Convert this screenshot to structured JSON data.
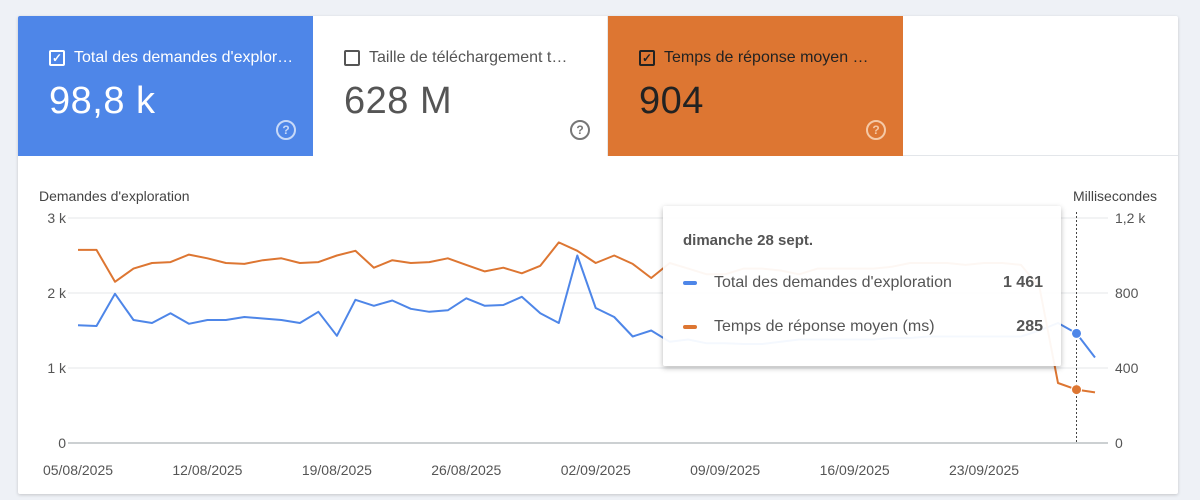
{
  "metrics": [
    {
      "label": "Total des demandes d'explor…",
      "value": "98,8 k",
      "checked": true,
      "color": "#4e86e8"
    },
    {
      "label": "Taille de téléchargement t…",
      "value": "628 M",
      "checked": false,
      "color": "#ffffff"
    },
    {
      "label": "Temps de réponse moyen …",
      "value": "904",
      "checked": true,
      "color": "#dd7632"
    }
  ],
  "help_glyph": "?",
  "check_glyph": "✓",
  "chart_data": {
    "type": "line",
    "ylabel_left": "Demandes d'exploration",
    "ylabel_right": "Millisecondes",
    "y_left_ticks": [
      "0",
      "1 k",
      "2 k",
      "3 k"
    ],
    "y_left_range": [
      0,
      3000
    ],
    "y_right_ticks": [
      "0",
      "400",
      "800",
      "1,2 k"
    ],
    "y_right_range": [
      0,
      1200
    ],
    "x_tick_labels": [
      "05/08/2025",
      "12/08/2025",
      "19/08/2025",
      "26/08/2025",
      "02/09/2025",
      "09/09/2025",
      "16/09/2025",
      "23/09/2025"
    ],
    "x": [
      "05/08/2025",
      "06/08/2025",
      "07/08/2025",
      "08/08/2025",
      "09/08/2025",
      "10/08/2025",
      "11/08/2025",
      "12/08/2025",
      "13/08/2025",
      "14/08/2025",
      "15/08/2025",
      "16/08/2025",
      "17/08/2025",
      "18/08/2025",
      "19/08/2025",
      "20/08/2025",
      "21/08/2025",
      "22/08/2025",
      "23/08/2025",
      "24/08/2025",
      "25/08/2025",
      "26/08/2025",
      "27/08/2025",
      "28/08/2025",
      "29/08/2025",
      "30/08/2025",
      "31/08/2025",
      "01/09/2025",
      "02/09/2025",
      "03/09/2025",
      "04/09/2025",
      "05/09/2025",
      "06/09/2025",
      "07/09/2025",
      "08/09/2025",
      "09/09/2025",
      "10/09/2025",
      "11/09/2025",
      "12/09/2025",
      "13/09/2025",
      "14/09/2025",
      "15/09/2025",
      "16/09/2025",
      "17/09/2025",
      "18/09/2025",
      "19/09/2025",
      "20/09/2025",
      "21/09/2025",
      "22/09/2025",
      "23/09/2025",
      "24/09/2025",
      "25/09/2025",
      "26/09/2025",
      "27/09/2025",
      "28/09/2025",
      "29/09/2025"
    ],
    "series": [
      {
        "name": "Total des demandes d'exploration",
        "axis": "left",
        "color": "#4e86e8",
        "values": [
          1570,
          1560,
          1990,
          1640,
          1600,
          1730,
          1590,
          1640,
          1640,
          1680,
          1660,
          1640,
          1600,
          1750,
          1430,
          1910,
          1830,
          1900,
          1790,
          1750,
          1770,
          1930,
          1830,
          1840,
          1950,
          1730,
          1600,
          2500,
          1800,
          1680,
          1420,
          1500,
          1350,
          1380,
          1330,
          1330,
          1320,
          1320,
          1350,
          1380,
          1380,
          1380,
          1380,
          1380,
          1400,
          1400,
          1420,
          1420,
          1420,
          1420,
          1420,
          1420,
          1500,
          1600,
          1461,
          1140
        ]
      },
      {
        "name": "Temps de réponse moyen (ms)",
        "axis": "right",
        "color": "#dd7632",
        "values": [
          1030,
          1030,
          860,
          930,
          960,
          965,
          1005,
          985,
          960,
          955,
          975,
          985,
          960,
          965,
          1000,
          1025,
          935,
          975,
          960,
          965,
          985,
          950,
          915,
          935,
          905,
          945,
          1070,
          1025,
          960,
          1000,
          955,
          880,
          960,
          930,
          900,
          900,
          930,
          930,
          920,
          900,
          930,
          930,
          930,
          930,
          940,
          960,
          960,
          960,
          950,
          960,
          960,
          950,
          830,
          320,
          285,
          270
        ]
      }
    ],
    "highlight_index": 54,
    "grid": true,
    "legend": "top-left metric cards"
  },
  "tooltip": {
    "date": "dimanche 28 sept.",
    "rows": [
      {
        "label": "Total des demandes d'exploration",
        "value": "1 461",
        "color": "#4e86e8"
      },
      {
        "label": "Temps de réponse moyen (ms)",
        "value": "285",
        "color": "#dd7632"
      }
    ]
  }
}
